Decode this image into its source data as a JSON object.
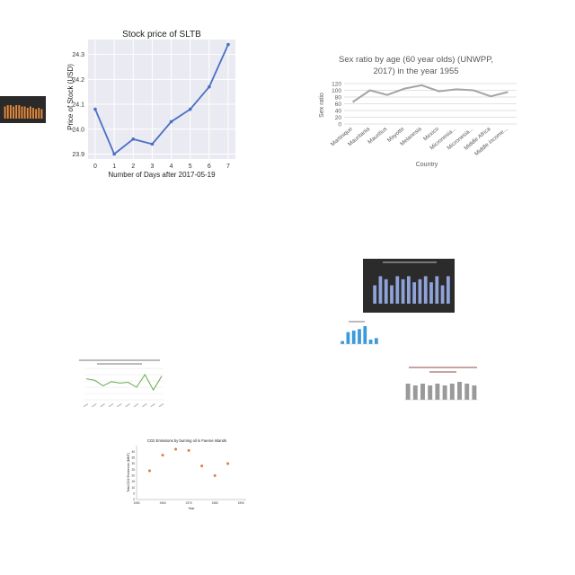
{
  "charts": {
    "stock": {
      "chart_data": {
        "type": "line",
        "title": "Stock price of SLTB",
        "xlabel": "Number of Days after 2017-05-19",
        "ylabel": "Price of Stock (USD)",
        "x": [
          0,
          1,
          2,
          3,
          4,
          5,
          6,
          7
        ],
        "values": [
          24.08,
          23.9,
          23.96,
          23.94,
          24.03,
          24.08,
          24.17,
          24.34
        ],
        "ylim": [
          23.88,
          24.36
        ],
        "yticks": [
          "23.9",
          "24.0",
          "24.1",
          "24.2",
          "24.3"
        ],
        "xticks": [
          "0",
          "1",
          "2",
          "3",
          "4",
          "5",
          "6",
          "7"
        ],
        "grid": true,
        "colors": {
          "line": "#4a6fc4",
          "bg": "#eaeaf2"
        }
      }
    },
    "sexratio": {
      "chart_data": {
        "type": "line",
        "title_line1": "Sex ratio by age (60 year olds) (UNWPP,",
        "title_line2": "2017) in the year 1955",
        "xlabel": "Country",
        "ylabel": "Sex ratio",
        "categories": [
          "Martinique",
          "Mauritania",
          "Mauritius",
          "Mayotte",
          "Melanesia",
          "Mexico",
          "Micronesia...",
          "Micronesia...",
          "Middle Africa",
          "Middle income..."
        ],
        "values": [
          65,
          100,
          86,
          105,
          115,
          97,
          103,
          100,
          82,
          95
        ],
        "ylim": [
          0,
          120
        ],
        "yticks": [
          "0",
          "20",
          "40",
          "60",
          "80",
          "100",
          "120"
        ],
        "colors": {
          "line": "#a5a5a5"
        }
      }
    },
    "thumbnails": {
      "orange_bars": {
        "values": [
          9,
          10,
          10,
          9,
          10,
          10,
          9,
          9,
          8,
          9,
          8,
          7,
          8,
          7
        ],
        "colors": {
          "bar": "#e98a3a",
          "bg": "#2a2a2a"
        }
      },
      "dark_bars": {
        "values": [
          6,
          9,
          8,
          6,
          9,
          8,
          9,
          7,
          8,
          9,
          7,
          9,
          6,
          9
        ],
        "colors": {
          "bar": "#8fa3d9",
          "bg": "#2b2b2b"
        }
      },
      "small_bars": {
        "values": [
          2,
          8,
          9,
          10,
          12,
          3,
          4
        ],
        "colors": {
          "bar": "#3b9ad9"
        }
      },
      "green_line": {
        "values": [
          60,
          58,
          50,
          56,
          54,
          55,
          48,
          66,
          44,
          64
        ],
        "colors": {
          "line": "#6aa84f"
        }
      },
      "gray_bars": {
        "values": [
          9,
          8,
          9,
          8,
          9,
          8,
          9,
          10,
          9,
          8
        ],
        "colors": {
          "bar": "#9a9a9a"
        }
      }
    },
    "co2": {
      "chart_data": {
        "type": "scatter",
        "title": "CO2 Emissions by burning oil in Faeroe Islands",
        "xlabel": "Year",
        "ylabel": "Total CO2 Emissions (MMT)",
        "x": [
          1955,
          1960,
          1965,
          1970,
          1975,
          1980,
          1985
        ],
        "values": [
          24,
          37,
          42,
          41,
          28,
          20,
          30
        ],
        "xlim": [
          1950,
          1992
        ],
        "ylim": [
          0,
          45
        ],
        "xticks": [
          "1950",
          "1960",
          "1970",
          "1980",
          "1990"
        ],
        "yticks": [
          "0",
          "5",
          "10",
          "15",
          "20",
          "25",
          "30",
          "35",
          "40"
        ],
        "colors": {
          "point": "#e07b39"
        }
      }
    }
  }
}
